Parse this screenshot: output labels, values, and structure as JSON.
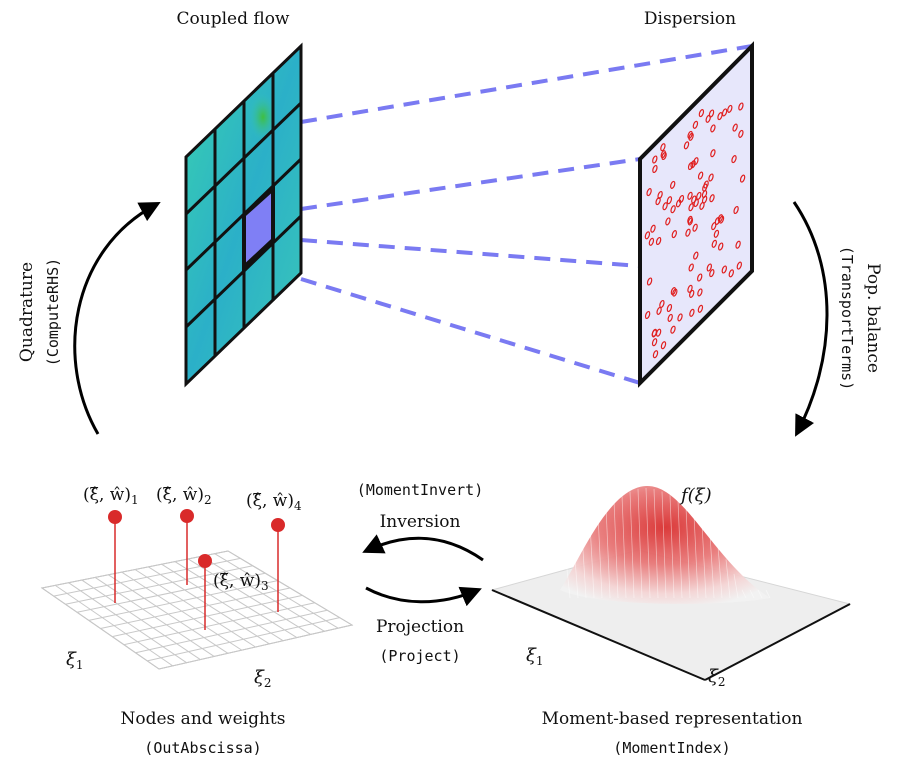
{
  "labels": {
    "coupled_flow": "Coupled flow",
    "dispersion": "Dispersion",
    "quadrature": "Quadrature",
    "quadrature_code": "ComputeRHS",
    "pop_balance": "Pop. balance",
    "pop_balance_code": "TransportTerms",
    "moment_invert_code": "MomentInvert",
    "inversion": "Inversion",
    "projection": "Projection",
    "project_code": "Project",
    "nodes_weights": "Nodes and weights",
    "nodes_weights_code": "OutAbscissa",
    "moment_rep": "Moment-based representation",
    "moment_rep_code": "MomentIndex",
    "f_xi": "f(ξ)",
    "xi1": "ξ",
    "xi2": "ξ",
    "sub1": "1",
    "sub2": "2"
  },
  "nodes": [
    {
      "label": "(ξ̂, ŵ)",
      "sub": "1"
    },
    {
      "label": "(ξ̂, ŵ)",
      "sub": "2"
    },
    {
      "label": "(ξ̂, ŵ)",
      "sub": "3"
    },
    {
      "label": "(ξ̂, ŵ)",
      "sub": "4"
    }
  ],
  "colors": {
    "dash": "#7a7af2",
    "node": "#d92a2a",
    "panel": "#e7e7fb",
    "highlight": "#7f7ff5",
    "cell_a": "#33c7b4",
    "cell_b": "#2aa9c9",
    "particle": "#e02020"
  },
  "icons": {
    "cw_arrow": "curved-arrow",
    "ccw_arrow": "curved-arrow"
  }
}
